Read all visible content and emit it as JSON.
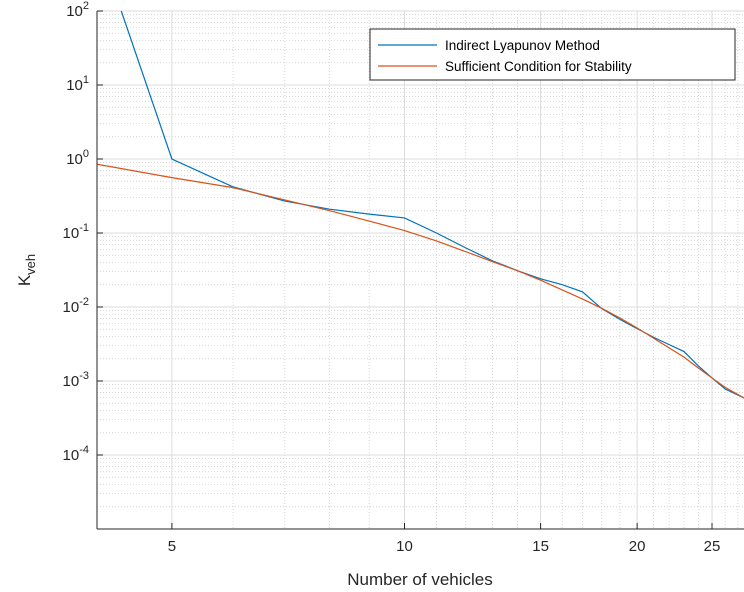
{
  "chart_data": {
    "type": "line",
    "xscale": "log",
    "yscale": "log",
    "xlim": [
      4,
      27.5
    ],
    "ylim": [
      1e-05,
      100
    ],
    "xlabel": "Number of vehicles",
    "ylabel_main": "K",
    "ylabel_sub": "veh",
    "xticks": [
      5,
      10,
      15,
      20,
      25
    ],
    "yticks": [
      {
        "value": 100,
        "base": "10",
        "exp": "2"
      },
      {
        "value": 10,
        "base": "10",
        "exp": "1"
      },
      {
        "value": 1,
        "base": "10",
        "exp": "0"
      },
      {
        "value": 0.1,
        "base": "10",
        "exp": "-1"
      },
      {
        "value": 0.01,
        "base": "10",
        "exp": "-2"
      },
      {
        "value": 0.001,
        "base": "10",
        "exp": "-3"
      },
      {
        "value": 0.0001,
        "base": "10",
        "exp": "-4"
      }
    ],
    "grid": true,
    "minor_grid": true,
    "legend_position": "top-right",
    "series": [
      {
        "name": "Indirect Lyapunov Method",
        "color": "#0072BD",
        "x": [
          4.3,
          5,
          6,
          7,
          8,
          9,
          10,
          11,
          12,
          13,
          14,
          15,
          16,
          17,
          18,
          19,
          20,
          21,
          22,
          23,
          24,
          25,
          26,
          27.5
        ],
        "y": [
          100,
          1.0,
          0.42,
          0.27,
          0.21,
          0.18,
          0.16,
          0.1,
          0.063,
          0.042,
          0.031,
          0.024,
          0.02,
          0.016,
          0.0095,
          0.0068,
          0.0051,
          0.0039,
          0.0031,
          0.0025,
          0.0016,
          0.0011,
          0.00078,
          0.00059
        ]
      },
      {
        "name": "Sufficient Condition for Stability",
        "color": "#D95319",
        "x": [
          4,
          5,
          6,
          7,
          8,
          9,
          10,
          11,
          12,
          13,
          14,
          15,
          16,
          17,
          18,
          19,
          20,
          21,
          22,
          23,
          24,
          25,
          26,
          27.5
        ],
        "y": [
          0.85,
          0.56,
          0.41,
          0.28,
          0.2,
          0.145,
          0.108,
          0.078,
          0.056,
          0.041,
          0.031,
          0.023,
          0.017,
          0.0128,
          0.0096,
          0.0071,
          0.0052,
          0.0038,
          0.0028,
          0.0021,
          0.0015,
          0.0011,
          0.00082,
          0.00059
        ]
      }
    ]
  }
}
